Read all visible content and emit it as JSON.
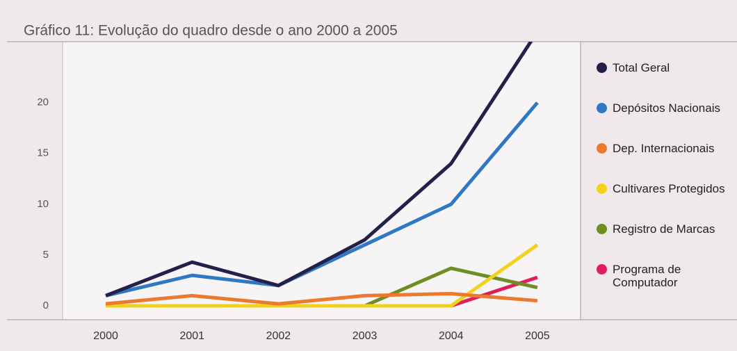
{
  "chart_data": {
    "type": "line",
    "title": "Gráfico 11: Evolução do quadro desde o ano 2000 a 2005",
    "categories": [
      "2000",
      "2001",
      "2002",
      "2003",
      "2004",
      "2005"
    ],
    "series": [
      {
        "name": "Total Geral",
        "color": "#23204a",
        "values": [
          1,
          4.3,
          2,
          6.5,
          14,
          27
        ]
      },
      {
        "name": "Depósitos Nacionais",
        "color": "#2f78c4",
        "values": [
          1,
          3,
          2,
          6,
          10,
          20
        ]
      },
      {
        "name": "Dep. Internacionais",
        "color": "#ec7a2c",
        "values": [
          0.2,
          1,
          0.2,
          1,
          1.2,
          0.5
        ]
      },
      {
        "name": "Cultivares Protegidos",
        "color": "#f2d21c",
        "values": [
          0,
          0,
          0,
          0,
          0,
          6
        ]
      },
      {
        "name": "Registro de Marcas",
        "color": "#6e8d22",
        "values": [
          0,
          0,
          0,
          0,
          3.7,
          1.8
        ]
      },
      {
        "name": "Programa de Computador",
        "color": "#e01e5a",
        "values": [
          0,
          0,
          0,
          0,
          0,
          2.8
        ]
      }
    ],
    "ylim": [
      0,
      26
    ],
    "yticks": [
      0,
      5,
      10,
      15,
      20
    ],
    "grid": false
  }
}
